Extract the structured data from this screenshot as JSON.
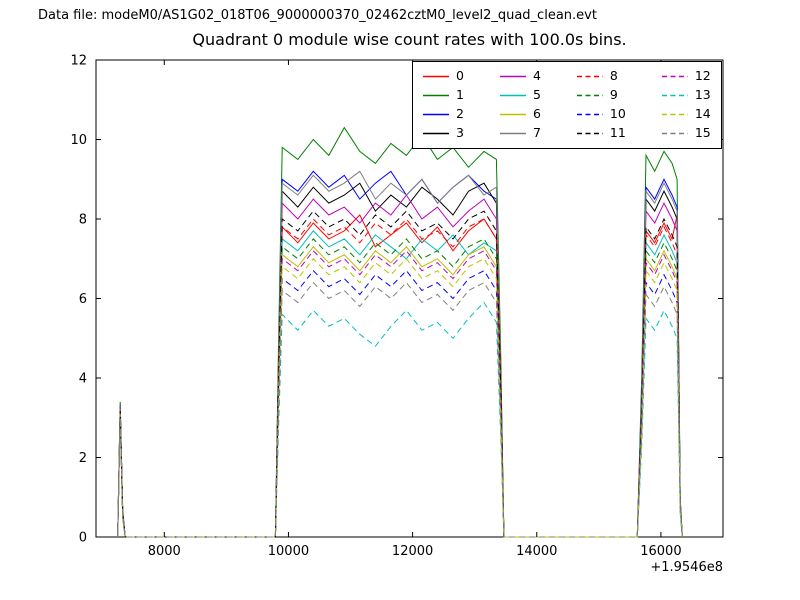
{
  "header": {
    "datafile_label": "Data file: modeM0/AS1G02_018T06_9000000370_02462cztM0_level2_quad_clean.evt"
  },
  "chart_data": {
    "type": "line",
    "title": "Quadrant 0 module wise count rates with 100.0s bins.",
    "xlabel": "",
    "ylabel": "",
    "x_offset_label": "+1.9546e8",
    "xlim": [
      6900,
      17000
    ],
    "ylim": [
      0,
      12
    ],
    "x_ticks": [
      8000,
      10000,
      12000,
      14000,
      16000
    ],
    "y_ticks": [
      0,
      2,
      4,
      6,
      8,
      10,
      12
    ],
    "grid": false,
    "legend_position": "upper center-right, 4 columns",
    "x": [
      7250,
      7290,
      7330,
      7370,
      9000,
      9790,
      9840,
      9900,
      10150,
      10400,
      10650,
      10900,
      11150,
      11400,
      11650,
      11900,
      12150,
      12400,
      12650,
      12900,
      13150,
      13350,
      13420,
      13470,
      14500,
      15620,
      15690,
      15760,
      15900,
      16050,
      16180,
      16260,
      16310,
      16345
    ],
    "series": [
      {
        "name": "0",
        "color": "#ff0000",
        "dash": false,
        "values": [
          0,
          3.3,
          0.6,
          0,
          0,
          0,
          3.8,
          7.8,
          7.4,
          7.9,
          7.5,
          7.7,
          8.1,
          7.3,
          7.6,
          7.9,
          7.4,
          7.8,
          7.2,
          7.7,
          8.0,
          7.5,
          3.5,
          0,
          0,
          0,
          3.0,
          7.7,
          7.4,
          7.9,
          7.5,
          8.1,
          0.9,
          0
        ]
      },
      {
        "name": "1",
        "color": "#008000",
        "dash": false,
        "values": [
          0,
          3.4,
          0.7,
          0,
          0,
          0,
          4.8,
          9.8,
          9.5,
          10.0,
          9.6,
          10.3,
          9.7,
          9.4,
          9.9,
          9.6,
          10.1,
          9.5,
          9.8,
          9.3,
          9.7,
          9.5,
          4.5,
          0,
          0,
          0,
          4.0,
          9.6,
          9.2,
          9.7,
          9.4,
          9.0,
          1.0,
          0
        ]
      },
      {
        "name": "2",
        "color": "#0000ff",
        "dash": false,
        "values": [
          0,
          3.3,
          0.6,
          0,
          0,
          0,
          4.4,
          9.0,
          8.7,
          9.2,
          8.8,
          9.1,
          8.5,
          8.9,
          9.2,
          8.6,
          9.0,
          8.4,
          8.8,
          9.1,
          8.7,
          8.5,
          4.0,
          0,
          0,
          0,
          3.7,
          8.8,
          8.5,
          9.0,
          8.6,
          8.3,
          0.9,
          0
        ]
      },
      {
        "name": "3",
        "color": "#000000",
        "dash": false,
        "values": [
          0,
          3.3,
          0.6,
          0,
          0,
          0,
          4.2,
          8.7,
          8.3,
          8.8,
          8.4,
          8.6,
          8.9,
          8.2,
          8.6,
          8.3,
          8.8,
          8.5,
          8.1,
          8.7,
          8.9,
          8.4,
          3.9,
          0,
          0,
          0,
          3.5,
          8.5,
          8.2,
          8.7,
          8.3,
          8.0,
          0.9,
          0
        ]
      },
      {
        "name": "4",
        "color": "#bf00bf",
        "dash": false,
        "values": [
          0,
          3.2,
          0.6,
          0,
          0,
          0,
          4.1,
          8.4,
          8.0,
          8.5,
          8.1,
          8.3,
          7.9,
          8.4,
          8.1,
          8.6,
          8.0,
          8.3,
          7.8,
          8.2,
          8.5,
          8.0,
          3.8,
          0,
          0,
          0,
          3.4,
          8.2,
          7.9,
          8.4,
          8.0,
          7.7,
          0.8,
          0
        ]
      },
      {
        "name": "5",
        "color": "#00bfbf",
        "dash": false,
        "values": [
          0,
          3.2,
          0.6,
          0,
          0,
          0,
          3.7,
          7.5,
          7.2,
          7.7,
          7.3,
          7.5,
          7.1,
          7.6,
          7.3,
          7.0,
          7.5,
          7.2,
          7.6,
          7.1,
          7.4,
          7.2,
          3.4,
          0,
          0,
          0,
          3.1,
          7.4,
          7.1,
          7.6,
          7.2,
          6.9,
          0.8,
          0
        ]
      },
      {
        "name": "6",
        "color": "#bfbf00",
        "dash": false,
        "values": [
          0,
          3.1,
          0.5,
          0,
          0,
          0,
          3.5,
          7.1,
          6.8,
          7.3,
          6.9,
          7.1,
          6.7,
          7.2,
          6.9,
          7.3,
          6.8,
          7.0,
          6.6,
          7.1,
          7.3,
          6.8,
          3.2,
          0,
          0,
          0,
          2.9,
          7.0,
          6.7,
          7.2,
          6.8,
          6.5,
          0.8,
          0
        ]
      },
      {
        "name": "7",
        "color": "#7f7f7f",
        "dash": false,
        "values": [
          0,
          3.3,
          0.6,
          0,
          0,
          0,
          4.3,
          8.9,
          8.6,
          9.1,
          8.7,
          8.9,
          9.2,
          8.5,
          8.9,
          8.6,
          9.0,
          8.4,
          8.8,
          9.1,
          8.6,
          8.8,
          4.0,
          0,
          0,
          0,
          3.6,
          8.7,
          8.4,
          8.9,
          8.5,
          8.2,
          0.9,
          0
        ]
      },
      {
        "name": "8",
        "color": "#ff0000",
        "dash": true,
        "values": [
          0,
          3.2,
          0.6,
          0,
          0,
          0,
          3.8,
          7.8,
          7.5,
          8.0,
          7.6,
          7.8,
          7.4,
          7.9,
          7.6,
          8.0,
          7.5,
          7.7,
          7.3,
          7.8,
          8.0,
          7.5,
          3.6,
          0,
          0,
          0,
          3.1,
          7.6,
          7.3,
          7.8,
          7.4,
          7.1,
          0.8,
          0
        ]
      },
      {
        "name": "9",
        "color": "#008000",
        "dash": true,
        "values": [
          0,
          3.1,
          0.5,
          0,
          0,
          0,
          3.6,
          7.3,
          7.0,
          7.5,
          7.1,
          7.3,
          6.9,
          7.4,
          7.1,
          7.5,
          7.0,
          7.2,
          6.8,
          7.3,
          7.5,
          7.0,
          3.3,
          0,
          0,
          0,
          3.0,
          7.2,
          6.9,
          7.4,
          7.0,
          6.7,
          0.8,
          0
        ]
      },
      {
        "name": "10",
        "color": "#0000ff",
        "dash": true,
        "values": [
          0,
          3.1,
          0.5,
          0,
          0,
          0,
          3.2,
          6.5,
          6.2,
          6.7,
          6.3,
          6.5,
          6.1,
          6.6,
          6.3,
          6.7,
          6.2,
          6.4,
          6.0,
          6.5,
          6.7,
          6.2,
          3.0,
          0,
          0,
          0,
          2.7,
          6.4,
          6.1,
          6.6,
          6.2,
          5.9,
          0.7,
          0
        ]
      },
      {
        "name": "11",
        "color": "#000000",
        "dash": true,
        "values": [
          0,
          3.2,
          0.6,
          0,
          0,
          0,
          3.9,
          8.0,
          7.7,
          8.2,
          7.8,
          8.0,
          7.6,
          8.1,
          7.8,
          8.2,
          7.7,
          7.9,
          7.5,
          8.0,
          8.2,
          7.7,
          3.7,
          0,
          0,
          0,
          3.2,
          7.8,
          7.5,
          8.0,
          7.6,
          7.3,
          0.8,
          0
        ]
      },
      {
        "name": "12",
        "color": "#bf00bf",
        "dash": true,
        "values": [
          0,
          3.1,
          0.5,
          0,
          0,
          0,
          3.4,
          7.0,
          6.7,
          7.2,
          6.8,
          7.0,
          6.6,
          7.1,
          6.8,
          7.2,
          6.7,
          6.9,
          6.5,
          7.0,
          7.2,
          6.7,
          3.1,
          0,
          0,
          0,
          2.8,
          6.9,
          6.6,
          7.1,
          6.7,
          6.4,
          0.7,
          0
        ]
      },
      {
        "name": "13",
        "color": "#00bfbf",
        "dash": true,
        "values": [
          0,
          3.0,
          0.5,
          0,
          0,
          0,
          2.7,
          5.6,
          5.2,
          5.7,
          5.3,
          5.5,
          5.1,
          4.8,
          5.3,
          5.7,
          5.2,
          5.4,
          5.0,
          5.5,
          5.9,
          5.4,
          2.5,
          0,
          0,
          0,
          2.3,
          5.5,
          5.2,
          5.7,
          5.3,
          5.0,
          0.6,
          0
        ]
      },
      {
        "name": "14",
        "color": "#bfbf00",
        "dash": true,
        "values": [
          0,
          3.1,
          0.5,
          0,
          0,
          0,
          3.3,
          6.8,
          6.5,
          7.0,
          6.6,
          6.8,
          6.4,
          6.9,
          6.6,
          7.0,
          6.5,
          6.7,
          6.3,
          6.8,
          7.0,
          6.5,
          3.0,
          0,
          0,
          0,
          2.7,
          6.7,
          6.4,
          6.9,
          6.5,
          6.2,
          0.7,
          0
        ]
      },
      {
        "name": "15",
        "color": "#7f7f7f",
        "dash": true,
        "values": [
          0,
          3.0,
          0.5,
          0,
          0,
          0,
          3.0,
          6.2,
          5.9,
          6.4,
          6.0,
          6.2,
          5.8,
          6.3,
          6.0,
          6.4,
          5.9,
          6.1,
          5.7,
          6.2,
          6.4,
          5.9,
          2.8,
          0,
          0,
          0,
          2.6,
          6.1,
          5.8,
          6.3,
          5.9,
          5.6,
          0.7,
          0
        ]
      }
    ]
  }
}
